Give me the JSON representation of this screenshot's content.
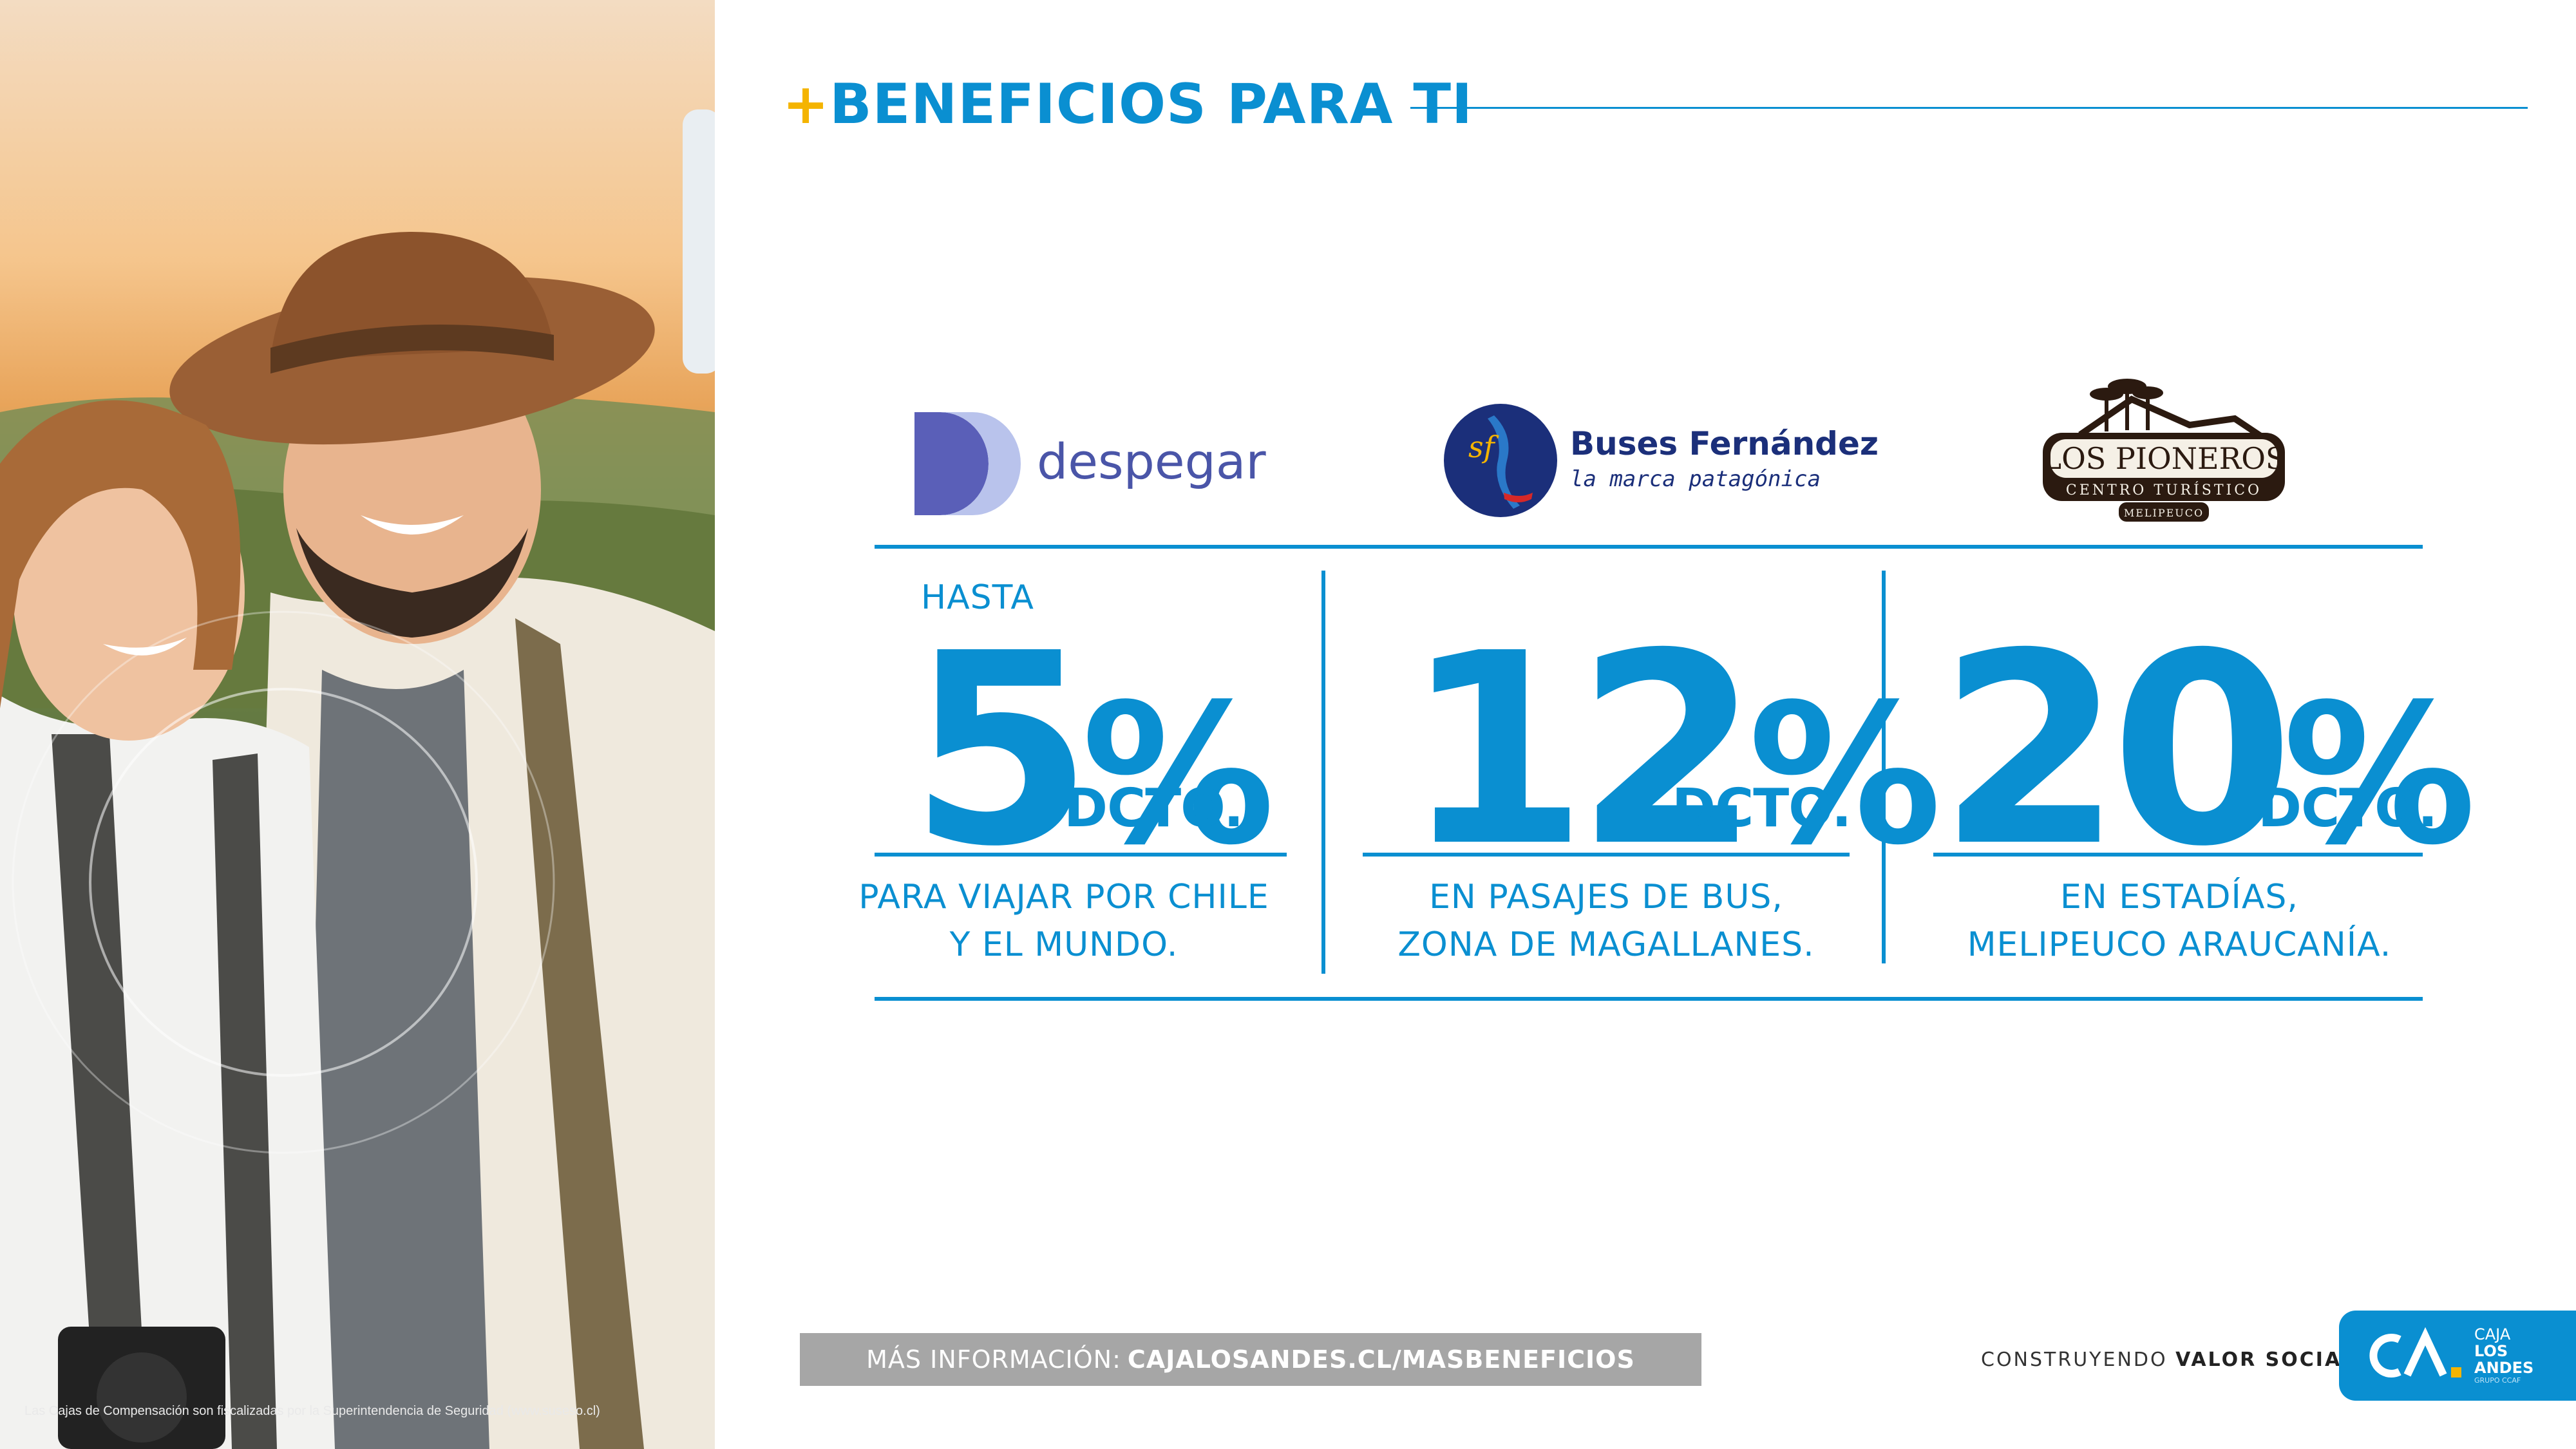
{
  "header": {
    "plus": "+",
    "title": "BENEFICIOS PARA TI"
  },
  "partners": {
    "despegar": {
      "name": "despegar"
    },
    "buses": {
      "name": "Buses Fernández",
      "tagline": "la marca patagónica"
    },
    "pioneros": {
      "name": "LOS PIONEROS",
      "subtitle": "CENTRO TURÍSTICO",
      "location": "MELIPEUCO"
    }
  },
  "benefits": [
    {
      "prefix": "HASTA",
      "number": "5",
      "sign": "%",
      "unit": "DCTO.",
      "desc_line1": "PARA VIAJAR POR CHILE",
      "desc_line2": "Y EL MUNDO."
    },
    {
      "prefix": "",
      "number": "12",
      "sign": "%",
      "unit": "DCTO.",
      "desc_line1": "EN PASAJES DE BUS,",
      "desc_line2": "ZONA DE  MAGALLANES."
    },
    {
      "prefix": "",
      "number": "20",
      "sign": "%",
      "unit": "DCTO.",
      "desc_line1": "EN ESTADÍAS,",
      "desc_line2": "MELIPEUCO ARAUCANÍA."
    }
  ],
  "footer": {
    "info_label": "MÁS INFORMACIÓN:",
    "info_url": "CAJALOSANDES.CL/MASBENEFICIOS",
    "slogan_a": "CONSTRUYENDO",
    "slogan_b": "VALOR SOCIAL",
    "slogan_dot": ".",
    "brand_l1": "CAJA",
    "brand_l2": "LOS",
    "brand_l3": "ANDES",
    "brand_sub": "GRUPO CCAF",
    "legal": "Las Cajas de Compensación son fiscalizadas por la Superintendencia de Seguridad (www.suseso.cl)"
  },
  "colors": {
    "accent": "#0a8fd1",
    "plus": "#f4b400",
    "info_bar": "#a6a6a6",
    "despegar": "#4a55a8",
    "buses": "#1b2f7a"
  }
}
